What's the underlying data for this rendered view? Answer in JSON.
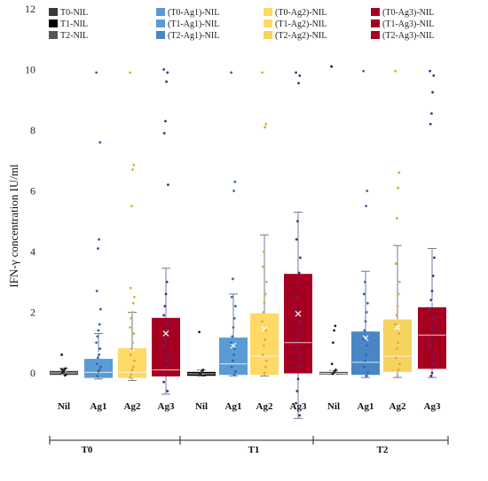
{
  "chart_data": {
    "type": "box",
    "ylabel": "IFN-γ concentration IU/ml",
    "xlabel": "",
    "ylim": [
      -2,
      12
    ],
    "yticks": [
      0,
      2,
      4,
      6,
      8,
      10,
      12
    ],
    "grid": false,
    "legend_position": "top",
    "legend": [
      {
        "name": "T0-NIL",
        "color": "#3a3a3a"
      },
      {
        "name": "(T0-Ag1)-NIL",
        "color": "#5b9bd5"
      },
      {
        "name": "(T0-Ag2)-NIL",
        "color": "#ffd966"
      },
      {
        "name": "(T0-Ag3)-NIL",
        "color": "#a50021"
      },
      {
        "name": "T1-NIL",
        "color": "#000000"
      },
      {
        "name": "(T1-Ag1)-NIL",
        "color": "#5b9bd5"
      },
      {
        "name": "(T1-Ag2)-NIL",
        "color": "#ffd966"
      },
      {
        "name": "(T1-Ag3)-NIL",
        "color": "#a50021"
      },
      {
        "name": "T2-NIL",
        "color": "#555555"
      },
      {
        "name": "(T2-Ag1)-NIL",
        "color": "#4a86c5"
      },
      {
        "name": "(T2-Ag2)-NIL",
        "color": "#f4d35e"
      },
      {
        "name": "(T2-Ag3)-NIL",
        "color": "#a50021"
      }
    ],
    "groups": [
      {
        "label": "T0",
        "categories": [
          "Nil",
          "Ag1",
          "Ag2",
          "Ag3"
        ]
      },
      {
        "label": "T1",
        "categories": [
          "Nil",
          "Ag1",
          "Ag2",
          "Ag3"
        ]
      },
      {
        "label": "T2",
        "categories": [
          "Nil",
          "Ag1",
          "Ag2",
          "Ag3"
        ]
      }
    ],
    "boxes": [
      {
        "group": "T0",
        "category": "Nil",
        "color": "#3a3a3a",
        "min": -0.05,
        "q1": -0.05,
        "median": 0.0,
        "q3": 0.05,
        "max": 0.15,
        "mean": 0.0,
        "outliers": [
          0.6,
          0.15,
          0.1,
          0.05,
          0.0,
          -0.05,
          -0.08,
          0.02,
          0.08,
          0.12
        ]
      },
      {
        "group": "T0",
        "category": "Ag1",
        "color": "#5b9bd5",
        "min": -0.2,
        "q1": -0.15,
        "median": 0.02,
        "q3": 0.45,
        "max": 1.3,
        "mean": 0.65,
        "outliers": [
          9.9,
          7.6,
          4.4,
          4.1,
          2.7,
          2.1,
          1.6,
          1.4,
          1.2,
          1.0,
          0.8,
          0.6,
          0.5,
          0.3,
          0.2,
          0.1,
          0.05,
          -0.1
        ]
      },
      {
        "group": "T0",
        "category": "Ag2",
        "color": "#ffd966",
        "min": -0.25,
        "q1": -0.15,
        "median": 0.02,
        "q3": 0.8,
        "max": 2.0,
        "mean": 0.8,
        "outliers": [
          9.9,
          6.85,
          6.7,
          5.5,
          2.8,
          2.5,
          2.3,
          2.0,
          1.8,
          1.5,
          1.3,
          1.0,
          0.8,
          0.6,
          0.4,
          0.2,
          0.1,
          -0.05,
          -0.15
        ]
      },
      {
        "group": "T0",
        "category": "Ag3",
        "color": "#a50021",
        "min": -0.7,
        "q1": -0.1,
        "median": 0.1,
        "q3": 1.8,
        "max": 3.45,
        "mean": 1.3,
        "outliers": [
          10.0,
          9.9,
          9.6,
          8.3,
          7.9,
          6.2,
          3.0,
          2.6,
          2.2,
          1.9,
          1.6,
          1.4,
          1.1,
          0.9,
          0.6,
          0.4,
          0.2,
          0.0,
          -0.3,
          -0.6
        ]
      },
      {
        "group": "T1",
        "category": "Nil",
        "color": "#000000",
        "min": -0.1,
        "q1": -0.08,
        "median": -0.03,
        "q3": 0.02,
        "max": 0.1,
        "mean": 0.0,
        "outliers": [
          1.35,
          0.1,
          0.05,
          0.0,
          -0.05,
          -0.08
        ]
      },
      {
        "group": "T1",
        "category": "Ag1",
        "color": "#5b9bd5",
        "min": -0.1,
        "q1": -0.05,
        "median": 0.3,
        "q3": 1.15,
        "max": 2.6,
        "mean": 0.9,
        "outliers": [
          9.9,
          6.3,
          6.0,
          3.1,
          2.5,
          2.2,
          1.8,
          1.5,
          1.2,
          1.0,
          0.8,
          0.6,
          0.4,
          0.2,
          0.05,
          -0.05
        ]
      },
      {
        "group": "T1",
        "category": "Ag2",
        "color": "#ffd966",
        "min": -0.1,
        "q1": -0.05,
        "median": 0.55,
        "q3": 1.95,
        "max": 4.55,
        "mean": 1.45,
        "outliers": [
          9.9,
          8.2,
          8.1,
          4.0,
          3.5,
          3.0,
          2.6,
          2.3,
          2.0,
          1.7,
          1.4,
          1.1,
          0.9,
          0.6,
          0.4,
          0.2,
          0.0
        ]
      },
      {
        "group": "T1",
        "category": "Ag3",
        "color": "#a50021",
        "min": -1.5,
        "q1": 0.0,
        "median": 1.0,
        "q3": 3.25,
        "max": 5.3,
        "mean": 1.95,
        "outliers": [
          9.9,
          9.8,
          9.55,
          5.0,
          4.4,
          3.8,
          3.3,
          2.9,
          2.5,
          2.1,
          1.7,
          1.4,
          1.1,
          0.8,
          0.5,
          0.2,
          -0.2,
          -0.6,
          -1.0,
          -1.4
        ]
      },
      {
        "group": "T2",
        "category": "Nil",
        "color": "#555555",
        "min": -0.05,
        "q1": -0.04,
        "median": -0.02,
        "q3": 0.02,
        "max": 0.08,
        "mean": 0.0,
        "outliers": [
          10.1,
          1.55,
          1.4,
          1.0,
          0.3,
          0.1,
          0.05,
          0.0,
          -0.03
        ]
      },
      {
        "group": "T2",
        "category": "Ag1",
        "color": "#4a86c5",
        "min": -0.15,
        "q1": -0.05,
        "median": 0.35,
        "q3": 1.35,
        "max": 3.35,
        "mean": 1.15,
        "outliers": [
          9.95,
          6.0,
          5.5,
          3.0,
          2.6,
          2.3,
          2.0,
          1.7,
          1.4,
          1.1,
          0.9,
          0.6,
          0.4,
          0.2,
          0.0,
          -0.1
        ]
      },
      {
        "group": "T2",
        "category": "Ag2",
        "color": "#f4d35e",
        "min": -0.15,
        "q1": 0.05,
        "median": 0.55,
        "q3": 1.75,
        "max": 4.2,
        "mean": 1.5,
        "outliers": [
          9.95,
          6.6,
          6.1,
          5.1,
          3.6,
          3.0,
          2.6,
          2.2,
          1.9,
          1.6,
          1.3,
          1.0,
          0.8,
          0.5,
          0.3,
          0.1,
          -0.1
        ]
      },
      {
        "group": "T2",
        "category": "Ag3",
        "color": "#a50021",
        "min": -0.15,
        "q1": 0.15,
        "median": 1.25,
        "q3": 2.15,
        "max": 4.1,
        "mean": 2.35,
        "outliers": [
          9.95,
          9.8,
          9.25,
          8.55,
          8.2,
          3.8,
          3.2,
          2.7,
          2.4,
          2.1,
          1.8,
          1.5,
          1.2,
          0.9,
          0.6,
          0.3,
          0.0,
          -0.1
        ]
      }
    ]
  }
}
